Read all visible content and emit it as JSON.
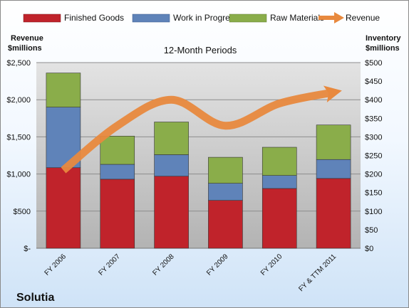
{
  "company": "Solutia",
  "chart_data": {
    "type": "bar",
    "stacked": true,
    "subtitle": "12-Month Periods",
    "categories": [
      "FY 2006",
      "FY 2007",
      "FY 2008",
      "FY 2009",
      "FY 2010",
      "FY & TTM 2011"
    ],
    "left_axis": {
      "label_line1": "Revenue",
      "label_line2": "$millions",
      "range": [
        0,
        2500
      ],
      "ticks": [
        0,
        500,
        1000,
        1500,
        2000,
        2500
      ],
      "tick_labels": [
        "$-",
        "$500",
        "$1,000",
        "$1,500",
        "$2,000",
        "$2,500"
      ]
    },
    "right_axis": {
      "label_line1": "Inventory",
      "label_line2": "$millions",
      "range": [
        0,
        500
      ],
      "ticks": [
        0,
        50,
        100,
        150,
        200,
        250,
        300,
        350,
        400,
        450,
        500
      ],
      "tick_labels": [
        "$0",
        "$50",
        "$100",
        "$150",
        "$200",
        "$250",
        "$300",
        "$350",
        "$400",
        "$450",
        "$500"
      ]
    },
    "series": [
      {
        "name": "Finished Goods",
        "type": "bar",
        "axis": "right",
        "color": "#c0232b",
        "values": [
          217,
          186,
          194,
          129,
          161,
          188
        ]
      },
      {
        "name": "Work in Progress",
        "type": "bar",
        "axis": "right",
        "color": "#5f83b9",
        "values": [
          163,
          40,
          58,
          46,
          35,
          51
        ]
      },
      {
        "name": "Raw Materials",
        "type": "bar",
        "axis": "right",
        "color": "#8aad4a",
        "values": [
          92,
          76,
          88,
          70,
          76,
          93
        ]
      },
      {
        "name": "Revenue",
        "type": "line",
        "axis": "left",
        "color": "#e8893e",
        "values": [
          1050,
          1650,
          2000,
          1650,
          1950,
          2100
        ]
      }
    ],
    "grid": true,
    "legend_position": "top"
  }
}
